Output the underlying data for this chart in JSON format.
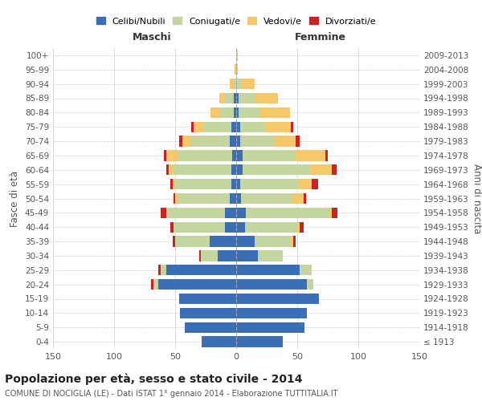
{
  "age_groups": [
    "100+",
    "95-99",
    "90-94",
    "85-89",
    "80-84",
    "75-79",
    "70-74",
    "65-69",
    "60-64",
    "55-59",
    "50-54",
    "45-49",
    "40-44",
    "35-39",
    "30-34",
    "25-29",
    "20-24",
    "15-19",
    "10-14",
    "5-9",
    "0-4"
  ],
  "birth_years": [
    "≤ 1913",
    "1914-1918",
    "1919-1923",
    "1924-1928",
    "1929-1933",
    "1934-1938",
    "1939-1943",
    "1944-1948",
    "1949-1953",
    "1954-1958",
    "1959-1963",
    "1964-1968",
    "1969-1973",
    "1974-1978",
    "1979-1983",
    "1984-1988",
    "1989-1993",
    "1994-1998",
    "1999-2003",
    "2004-2008",
    "2009-2013"
  ],
  "male": {
    "celibe": [
      0,
      0,
      0,
      2,
      2,
      4,
      5,
      3,
      4,
      4,
      5,
      9,
      9,
      22,
      15,
      57,
      64,
      47,
      46,
      42,
      28
    ],
    "coniugato": [
      0,
      0,
      2,
      8,
      12,
      22,
      32,
      45,
      47,
      46,
      43,
      48,
      42,
      28,
      14,
      5,
      4,
      0,
      0,
      0,
      0
    ],
    "vedovo": [
      0,
      1,
      3,
      4,
      7,
      9,
      7,
      9,
      4,
      2,
      2,
      0,
      0,
      0,
      0,
      0,
      0,
      0,
      0,
      0,
      0
    ],
    "divorziato": [
      0,
      0,
      0,
      0,
      0,
      2,
      3,
      2,
      2,
      2,
      1,
      5,
      3,
      2,
      1,
      2,
      2,
      0,
      0,
      0,
      0
    ]
  },
  "female": {
    "nubile": [
      0,
      0,
      0,
      2,
      2,
      3,
      3,
      5,
      5,
      3,
      4,
      8,
      7,
      15,
      18,
      52,
      58,
      68,
      58,
      56,
      38
    ],
    "coniugata": [
      0,
      0,
      5,
      14,
      18,
      20,
      28,
      43,
      55,
      48,
      42,
      68,
      43,
      30,
      20,
      10,
      5,
      0,
      0,
      0,
      0
    ],
    "vedova": [
      1,
      1,
      10,
      18,
      24,
      22,
      18,
      25,
      18,
      11,
      9,
      2,
      2,
      2,
      0,
      0,
      0,
      0,
      0,
      0,
      0
    ],
    "divorziata": [
      0,
      0,
      0,
      0,
      0,
      2,
      3,
      2,
      4,
      5,
      2,
      5,
      3,
      2,
      0,
      0,
      0,
      0,
      0,
      0,
      0
    ]
  },
  "colors": {
    "celibe": "#3a6eb5",
    "coniugato": "#c5d5a0",
    "vedovo": "#f5c96a",
    "divorziato": "#cc2222"
  },
  "title": "Popolazione per età, sesso e stato civile - 2014",
  "subtitle": "COMUNE DI NOCIGLIA (LE) - Dati ISTAT 1° gennaio 2014 - Elaborazione TUTTITALIA.IT",
  "xlabel_left": "Maschi",
  "xlabel_right": "Femmine",
  "ylabel_left": "Fasce di età",
  "ylabel_right": "Anni di nascita",
  "xlim": 150,
  "bg_color": "#ffffff",
  "grid_color": "#cccccc",
  "legend_labels": [
    "Celibi/Nubili",
    "Coniugati/e",
    "Vedovi/e",
    "Divorziati/e"
  ]
}
